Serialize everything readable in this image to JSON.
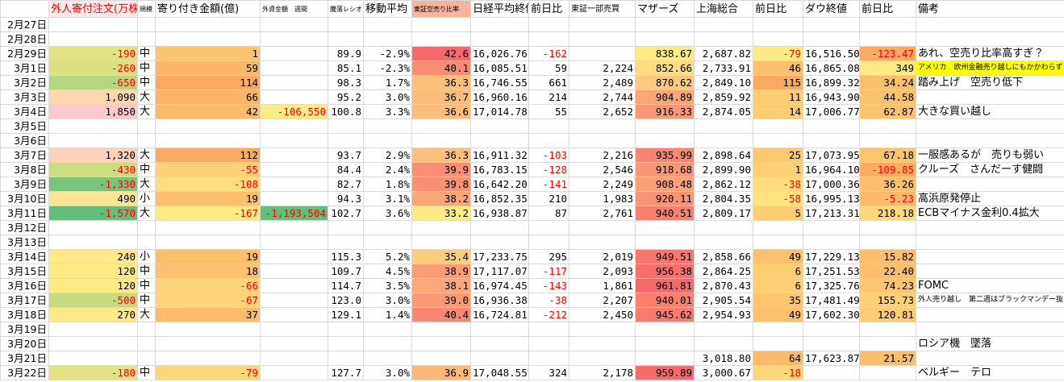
{
  "table": {
    "headers": [
      null,
      "外人寄付注文(万株)",
      "規模",
      "寄り付き金額(億)",
      "外資金額　週間",
      "騰落レシオ",
      "移動平均",
      "東証空売り比率",
      "日経平均終値",
      "前日比",
      "東証一部売買",
      "マザーズ",
      "上海総合",
      "前日比",
      "ダウ終値",
      "前日比",
      "備考"
    ],
    "rows": [
      [
        "2月27日",
        null,
        null,
        null,
        null,
        null,
        null,
        null,
        null,
        null,
        null,
        null,
        null,
        null,
        null,
        null,
        null
      ],
      [
        "2月28日",
        null,
        null,
        null,
        null,
        null,
        null,
        null,
        null,
        null,
        null,
        null,
        null,
        null,
        null,
        null,
        null
      ],
      [
        "2月29日",
        "-190",
        "中",
        "1",
        null,
        "89.9",
        "-2.9%",
        "42.6",
        "16,026.76",
        "-162",
        null,
        "838.67",
        "2,687.82",
        "-79",
        "16,516.50",
        "-123.47",
        "あれ、空売り比率高すぎ？"
      ],
      [
        "3月1日",
        "-260",
        "中",
        "59",
        null,
        "85.1",
        "-2.3%",
        "40.1",
        "16,085.51",
        "59",
        "2,224",
        "852.66",
        "2,733.91",
        "46",
        "16,865.08",
        "349",
        "アメリカ　欧州金融売り越しにもかかわらず"
      ],
      [
        "3月2日",
        "-650",
        "中",
        "114",
        null,
        "98.3",
        "1.7%",
        "36.3",
        "16,746.55",
        "661",
        "2,489",
        "870.62",
        "2,849.10",
        "115",
        "16,899.32",
        "34.24",
        "踏み上げ　空売り低下"
      ],
      [
        "3月3日",
        "1,090",
        "大",
        "66",
        null,
        "95.2",
        "3.0%",
        "36.7",
        "16,960.16",
        "214",
        "2,744",
        "904.89",
        "2,859.92",
        "11",
        "16,943.90",
        "44.58",
        null
      ],
      [
        "3月4日",
        "1,850",
        "大",
        "42",
        "-106,550",
        "100.8",
        "3.3%",
        "36.6",
        "17,014.78",
        "55",
        "2,652",
        "916.33",
        "2,874.05",
        "14",
        "17,006.77",
        "62.87",
        "大きな買い越し"
      ],
      [
        "3月5日",
        null,
        null,
        null,
        null,
        null,
        null,
        null,
        null,
        null,
        null,
        null,
        null,
        null,
        null,
        null,
        null
      ],
      [
        "3月6日",
        null,
        null,
        null,
        null,
        null,
        null,
        null,
        null,
        null,
        null,
        null,
        null,
        null,
        null,
        null,
        null
      ],
      [
        "3月7日",
        "1,320",
        "大",
        "112",
        null,
        "93.7",
        "2.9%",
        "36.3",
        "16,911.32",
        "-103",
        "2,216",
        "935.99",
        "2,898.64",
        "25",
        "17,073.95",
        "67.18",
        "一服感あるが　売りも弱い"
      ],
      [
        "3月8日",
        "-430",
        "中",
        "-55",
        null,
        "84.4",
        "2.4%",
        "39.9",
        "16,783.15",
        "-128",
        "2,546",
        "918.68",
        "2,899.90",
        "1",
        "16,964.10",
        "-109.85",
        "クルーズ　さんだーす健闘"
      ],
      [
        "3月9日",
        "-1,330",
        "大",
        "-108",
        null,
        "82.7",
        "1.8%",
        "39.8",
        "16,642.20",
        "-141",
        "2,249",
        "908.48",
        "2,862.12",
        "-38",
        "17,000.36",
        "36.26",
        null
      ],
      [
        "3月10日",
        "490",
        "小",
        "19",
        null,
        "94.3",
        "3.1%",
        "38.2",
        "16,852.35",
        "210",
        "1,983",
        "920.11",
        "2,804.35",
        "-58",
        "16,995.13",
        "-5.23",
        "高浜原発停止"
      ],
      [
        "3月11日",
        "-1,570",
        "大",
        "-167",
        "-1,193,504",
        "102.7",
        "3.6%",
        "33.2",
        "16,938.87",
        "87",
        "2,761",
        "940.51",
        "2,809.17",
        "5",
        "17,213.31",
        "218.18",
        "ECBマイナス金利0.4拡大"
      ],
      [
        "3月12日",
        null,
        null,
        null,
        null,
        null,
        null,
        null,
        null,
        null,
        null,
        null,
        null,
        null,
        null,
        null,
        null
      ],
      [
        "3月13日",
        null,
        null,
        null,
        null,
        null,
        null,
        null,
        null,
        null,
        null,
        null,
        null,
        null,
        null,
        null,
        null
      ],
      [
        "3月14日",
        "240",
        "小",
        "19",
        null,
        "115.3",
        "5.2%",
        "35.4",
        "17,233.75",
        "295",
        "2,019",
        "949.51",
        "2,858.66",
        "49",
        "17,229.13",
        "15.82",
        null
      ],
      [
        "3月15日",
        "120",
        "中",
        "18",
        null,
        "109.7",
        "4.5%",
        "38.9",
        "17,117.07",
        "-117",
        "2,093",
        "956.38",
        "2,864.25",
        "6",
        "17,251.53",
        "22.40",
        null
      ],
      [
        "3月16日",
        "120",
        "中",
        "-66",
        null,
        "114.7",
        "3.5%",
        "38.1",
        "16,974.45",
        "-143",
        "1,861",
        "961.81",
        "2,870.43",
        "6",
        "17,325.76",
        "74.23",
        "FOMC"
      ],
      [
        "3月17日",
        "-500",
        "中",
        "-67",
        null,
        "123.0",
        "3.0%",
        "39.0",
        "16,936.38",
        "-38",
        "2,207",
        "940.01",
        "2,905.54",
        "35",
        "17,481.49",
        "155.73",
        "外人売り越し　第二週はブラックマンデー抜く"
      ],
      [
        "3月18日",
        "270",
        "大",
        "37",
        null,
        "129.1",
        "1.4%",
        "40.4",
        "16,724.81",
        "-212",
        "2,450",
        "945.62",
        "2,954.93",
        "49",
        "17,602.30",
        "120.81",
        null
      ],
      [
        "3月19日",
        null,
        null,
        null,
        null,
        null,
        null,
        null,
        null,
        null,
        null,
        null,
        null,
        null,
        null,
        null,
        null
      ],
      [
        "3月20日",
        null,
        null,
        null,
        null,
        null,
        null,
        null,
        null,
        null,
        null,
        null,
        null,
        null,
        null,
        null,
        "ロシア機　墜落"
      ],
      [
        "3月21日",
        null,
        null,
        null,
        null,
        null,
        null,
        null,
        null,
        null,
        null,
        null,
        "3,018.80",
        "64",
        "17,623.87",
        "21.57",
        null
      ],
      [
        "3月22日",
        "-180",
        "中",
        "-79",
        null,
        "127.7",
        "3.0%",
        "36.9",
        "17,048.55",
        "324",
        "2,178",
        "959.89",
        "3,000.67",
        "-18",
        null,
        null,
        "ベルギー　テロ"
      ]
    ],
    "color_scales": [
      {
        "column": 1,
        "colors": [
          "#63be7b",
          "#ffeb84",
          "#ffc7ce"
        ]
      },
      {
        "column": 3,
        "colors": [
          "#ffeb84",
          "#fbaa62"
        ]
      },
      {
        "column": 4,
        "colors": [
          "#63be7b",
          "#ffeb84"
        ]
      },
      {
        "column": 7,
        "colors": [
          "#ffeb84",
          "#f8696b"
        ]
      },
      {
        "column": 11,
        "colors": [
          "#ffeb84",
          "#f8696b"
        ]
      },
      {
        "column": 13,
        "colors": [
          "#ffeb84",
          "#fbaa62"
        ]
      },
      {
        "column": 15,
        "colors": [
          "#fbaa62",
          "#ffeb84"
        ]
      }
    ],
    "negative_color": "#ff0000",
    "negative_red_columns": [
      1,
      3,
      4,
      9,
      13,
      15
    ],
    "header_colors": [
      {
        "column": 1,
        "color": "#ff0000",
        "background": "#fde9e7"
      },
      {
        "column": 7,
        "color": "#000000",
        "background": "#f8b39a"
      }
    ],
    "cell_highlights": [
      {
        "row": 3,
        "column": 16,
        "background": "#ffff00"
      }
    ]
  }
}
